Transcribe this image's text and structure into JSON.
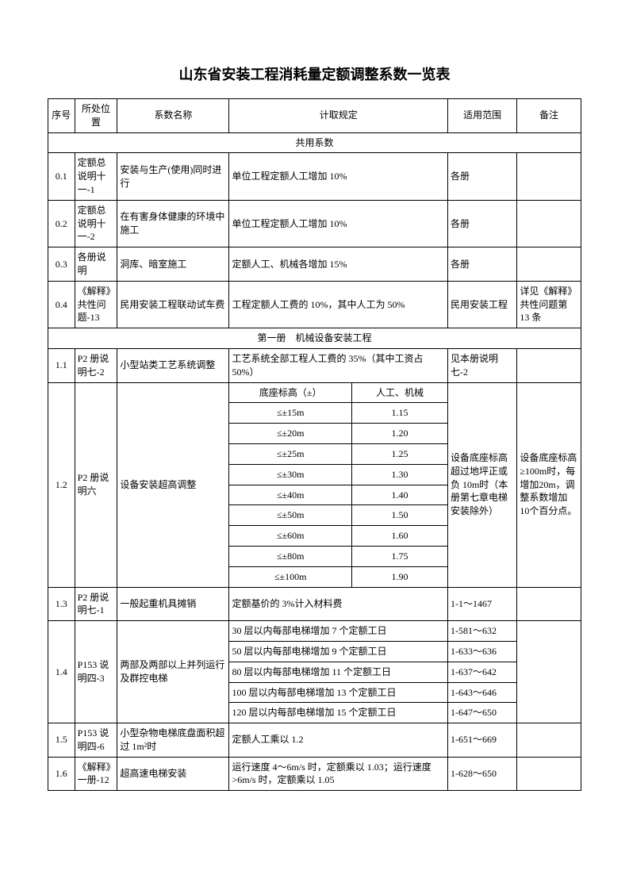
{
  "title": "山东省安装工程消耗量定额调整系数一览表",
  "headers": {
    "seq": "序号",
    "loc": "所处位置",
    "name": "系数名称",
    "rule": "计取规定",
    "scope": "适用范围",
    "note": "备注"
  },
  "section1": {
    "title": "共用系数",
    "rows": [
      {
        "seq": "0.1",
        "loc": "定额总说明十一-1",
        "name": "安装与生产(使用)同时进行",
        "rule": "单位工程定额人工增加 10%",
        "scope": "各册",
        "note": ""
      },
      {
        "seq": "0.2",
        "loc": "定额总说明十一-2",
        "name": "在有害身体健康的环境中施工",
        "rule": "单位工程定额人工增加 10%",
        "scope": "各册",
        "note": ""
      },
      {
        "seq": "0.3",
        "loc": "各册说明",
        "name": "洞库、暗室施工",
        "rule": "定额人工、机械各增加 15%",
        "scope": "各册",
        "note": ""
      },
      {
        "seq": "0.4",
        "loc": "《解释》共性问题-13",
        "name": "民用安装工程联动试车费",
        "rule": "工程定额人工费的 10%，其中人工为 50%",
        "scope": "民用安装工程",
        "note": "详见《解释》共性问题第 13 条"
      }
    ]
  },
  "section2": {
    "title": "第一册　机械设备安装工程",
    "row1_1": {
      "seq": "1.1",
      "loc": "P2 册说明七-2",
      "name": "小型站类工艺系统调整",
      "rule": "工艺系统全部工程人工费的 35%（其中工资占 50%）",
      "scope": "见本册说明七-2",
      "note": ""
    },
    "row1_2": {
      "seq": "1.2",
      "loc": "P2 册说明六",
      "name": "设备安装超高调整",
      "sub_header_left": "底座标高（±）",
      "sub_header_right": "人工、机械",
      "sub_rows": [
        {
          "l": "≤±15m",
          "r": "1.15"
        },
        {
          "l": "≤±20m",
          "r": "1.20"
        },
        {
          "l": "≤±25m",
          "r": "1.25"
        },
        {
          "l": "≤±30m",
          "r": "1.30"
        },
        {
          "l": "≤±40m",
          "r": "1.40"
        },
        {
          "l": "≤±50m",
          "r": "1.50"
        },
        {
          "l": "≤±60m",
          "r": "1.60"
        },
        {
          "l": "≤±80m",
          "r": "1.75"
        },
        {
          "l": "≤±100m",
          "r": "1.90"
        }
      ],
      "scope": "设备底座标高超过地坪正或负 10m时（本册第七章电梯安装除外）",
      "note": "设备底座标高≥100m时，每增加20m，调整系数增加 10个百分点。"
    },
    "row1_3": {
      "seq": "1.3",
      "loc": "P2 册说明七-1",
      "name": "一般起重机具摊销",
      "rule": "定额基价的 3%计入材料费",
      "scope": "1-1～1467",
      "note": ""
    },
    "row1_4": {
      "seq": "1.4",
      "loc": "P153 说明四-3",
      "name": "两部及两部以上并列运行及群控电梯",
      "sub_rows": [
        {
          "rule": "30 层以内每部电梯增加 7 个定额工日",
          "scope": "1-581～632"
        },
        {
          "rule": "50 层以内每部电梯增加 9 个定额工日",
          "scope": "1-633～636"
        },
        {
          "rule": "80 层以内每部电梯增加 11 个定额工日",
          "scope": "1-637～642"
        },
        {
          "rule": "100 层以内每部电梯增加 13 个定额工日",
          "scope": "1-643～646"
        },
        {
          "rule": "120 层以内每部电梯增加 15 个定额工日",
          "scope": "1-647～650"
        }
      ],
      "note": ""
    },
    "row1_5": {
      "seq": "1.5",
      "loc": "P153 说明四-6",
      "name": "小型杂物电梯底盘面积超过 1m²时",
      "rule": "定额人工乘以 1.2",
      "scope": "1-651～669",
      "note": ""
    },
    "row1_6": {
      "seq": "1.6",
      "loc": "《解释》一册-12",
      "name": "超高速电梯安装",
      "rule": "运行速度 4～6m/s 时，定额乘以 1.03；运行速度 >6m/s 时，定额乘以 1.05",
      "scope": "1-628～650",
      "note": ""
    }
  }
}
